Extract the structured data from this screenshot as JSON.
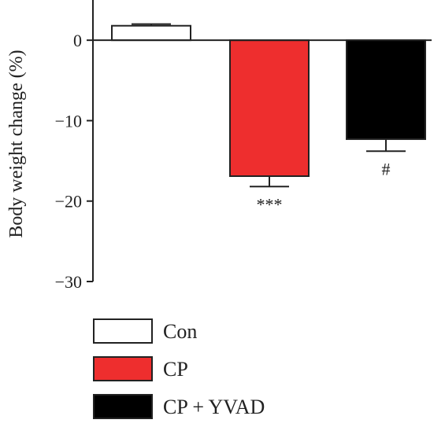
{
  "chart_data": {
    "type": "bar",
    "title": "",
    "xlabel": "",
    "ylabel": "Body weight change (%)",
    "ylim": [
      -30,
      5
    ],
    "yticks": [
      0,
      -10,
      -20,
      -30
    ],
    "ytick_labels": [
      "0",
      "−10",
      "−20",
      "−30"
    ],
    "categories": [
      "Con",
      "CP",
      "CP + YVAD"
    ],
    "values": [
      1.8,
      -16.9,
      -12.3
    ],
    "errors": [
      0.2,
      1.3,
      1.5
    ],
    "colors": [
      "#ffffff",
      "#ee2e2e",
      "#000000"
    ],
    "significance": [
      "",
      "***",
      "#"
    ],
    "legend": {
      "placement": "bottom-left",
      "entries": [
        {
          "label": "Con",
          "color": "#ffffff"
        },
        {
          "label": "CP",
          "color": "#ee2e2e"
        },
        {
          "label": "CP + YVAD",
          "color": "#000000"
        }
      ]
    },
    "grid": false
  }
}
